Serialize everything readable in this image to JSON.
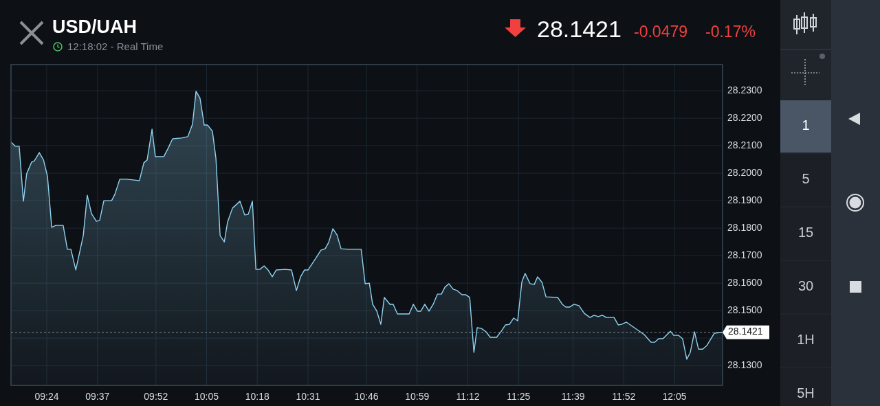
{
  "chart_data": {
    "type": "area",
    "title": "USD/UAH",
    "subtitle": "12:18:02 - Real Time",
    "annotations": [
      "28.1421",
      "-0.0479",
      "-0.17%",
      "1",
      "5",
      "15",
      "30",
      "1H",
      "5H"
    ],
    "x": [
      9.247,
      9.265,
      9.282,
      9.3,
      9.314,
      9.335,
      9.347,
      9.368,
      9.386,
      9.403,
      9.421,
      9.438,
      9.47,
      9.488,
      9.503,
      9.524,
      9.556,
      9.573,
      9.591,
      9.612,
      9.626,
      9.644,
      9.677,
      9.691,
      9.712,
      9.741,
      9.796,
      9.815,
      9.829,
      9.85,
      9.864,
      9.9,
      9.917,
      9.938,
      9.976,
      10.003,
      10.023,
      10.038,
      10.055,
      10.073,
      10.087,
      10.108,
      10.123,
      10.141,
      10.159,
      10.173,
      10.194,
      10.226,
      10.246,
      10.261,
      10.279,
      10.294,
      10.311,
      10.329,
      10.346,
      10.364,
      10.381,
      10.42,
      10.446,
      10.467,
      10.485,
      10.502,
      10.517,
      10.552,
      10.572,
      10.59,
      10.605,
      10.623,
      10.641,
      10.658,
      10.69,
      10.744,
      10.761,
      10.779,
      10.793,
      10.811,
      10.828,
      10.843,
      10.867,
      10.881,
      10.899,
      10.949,
      10.967,
      10.984,
      10.999,
      11.016,
      11.034,
      11.052,
      11.07,
      11.087,
      11.102,
      11.119,
      11.137,
      11.154,
      11.175,
      11.19,
      11.208,
      11.226,
      11.24,
      11.258,
      11.278,
      11.296,
      11.323,
      11.343,
      11.361,
      11.378,
      11.396,
      11.413,
      11.431,
      11.445,
      11.466,
      11.484,
      11.498,
      11.517,
      11.534,
      11.584,
      11.604,
      11.619,
      11.636,
      11.654,
      11.675,
      11.698,
      11.722,
      11.74,
      11.757,
      11.775,
      11.792,
      11.825,
      11.843,
      11.857,
      11.878,
      11.895,
      11.954,
      11.983,
      11.999,
      12.016,
      12.034,
      12.066,
      12.08,
      12.101,
      12.118,
      12.136,
      12.151,
      12.169,
      12.186,
      12.204,
      12.222,
      12.254,
      12.287
    ],
    "series": [
      {
        "color": "#8fd3f0",
        "values": [
          28.2113,
          28.2098,
          28.2098,
          28.1898,
          28.1998,
          28.204,
          28.2045,
          28.2075,
          28.2048,
          28.1988,
          28.1803,
          28.181,
          28.181,
          28.1723,
          28.1723,
          28.1648,
          28.1773,
          28.192,
          28.1853,
          28.1825,
          28.1828,
          28.19,
          28.19,
          28.1923,
          28.1978,
          28.1978,
          28.1973,
          28.2038,
          28.2048,
          28.216,
          28.206,
          28.206,
          28.2088,
          28.2125,
          28.2128,
          28.2133,
          28.2178,
          28.2298,
          28.2273,
          28.2175,
          28.2175,
          28.2153,
          28.2055,
          28.1773,
          28.175,
          28.1823,
          28.1873,
          28.1898,
          28.1848,
          28.185,
          28.1898,
          28.165,
          28.165,
          28.1663,
          28.1648,
          28.1623,
          28.1648,
          28.165,
          28.1648,
          28.1573,
          28.1623,
          28.1648,
          28.1648,
          28.1693,
          28.172,
          28.1725,
          28.1748,
          28.1798,
          28.1775,
          28.1725,
          28.1723,
          28.1723,
          28.1598,
          28.16,
          28.1523,
          28.1498,
          28.145,
          28.1548,
          28.1523,
          28.1523,
          28.1488,
          28.1488,
          28.1523,
          28.1498,
          28.1498,
          28.1523,
          28.1498,
          28.1523,
          28.156,
          28.156,
          28.1585,
          28.1598,
          28.1578,
          28.1573,
          28.1558,
          28.1558,
          28.1548,
          28.1348,
          28.1438,
          28.1435,
          28.1423,
          28.1403,
          28.1403,
          28.1425,
          28.1448,
          28.145,
          28.1473,
          28.1463,
          28.1605,
          28.1635,
          28.1598,
          28.1595,
          28.1623,
          28.1603,
          28.155,
          28.1548,
          28.1523,
          28.1513,
          28.1513,
          28.1523,
          28.1518,
          28.149,
          28.1475,
          28.1483,
          28.1478,
          28.1483,
          28.1475,
          28.1475,
          28.1448,
          28.145,
          28.1458,
          28.1448,
          28.1413,
          28.1385,
          28.1385,
          28.1398,
          28.1398,
          28.1425,
          28.141,
          28.141,
          28.1398,
          28.1323,
          28.1348,
          28.1423,
          28.136,
          28.136,
          28.1373,
          28.1418,
          28.1421
        ]
      }
    ],
    "xlim": [
      9.247,
      12.289
    ],
    "xticks": [
      {
        "value": 9.4,
        "label": "09:24"
      },
      {
        "value": 9.6167,
        "label": "09:37"
      },
      {
        "value": 9.8667,
        "label": "09:52"
      },
      {
        "value": 10.0833,
        "label": "10:05"
      },
      {
        "value": 10.3,
        "label": "10:18"
      },
      {
        "value": 10.5167,
        "label": "10:31"
      },
      {
        "value": 10.7667,
        "label": "10:46"
      },
      {
        "value": 10.9833,
        "label": "10:59"
      },
      {
        "value": 11.2,
        "label": "11:12"
      },
      {
        "value": 11.4167,
        "label": "11:25"
      },
      {
        "value": 11.65,
        "label": "11:39"
      },
      {
        "value": 11.8667,
        "label": "11:52"
      },
      {
        "value": 12.0833,
        "label": "12:05"
      }
    ],
    "ylim": [
      28.1228,
      28.2395
    ],
    "yticks": [
      {
        "value": 28.13,
        "label": "28.1300"
      },
      {
        "value": 28.14,
        "label": null
      },
      {
        "value": 28.15,
        "label": "28.1500"
      },
      {
        "value": 28.16,
        "label": "28.1600"
      },
      {
        "value": 28.17,
        "label": "28.1700"
      },
      {
        "value": 28.18,
        "label": "28.1800"
      },
      {
        "value": 28.19,
        "label": "28.1900"
      },
      {
        "value": 28.2,
        "label": "28.2000"
      },
      {
        "value": 28.21,
        "label": "28.2100"
      },
      {
        "value": 28.22,
        "label": "28.2200"
      },
      {
        "value": 28.23,
        "label": "28.2300"
      }
    ],
    "ref_lines": [
      {
        "axis": "y",
        "value": 28.1421,
        "label": "28.1421",
        "line_style": "dashed",
        "color": "#9aa4ae"
      }
    ],
    "grid": true
  }
}
